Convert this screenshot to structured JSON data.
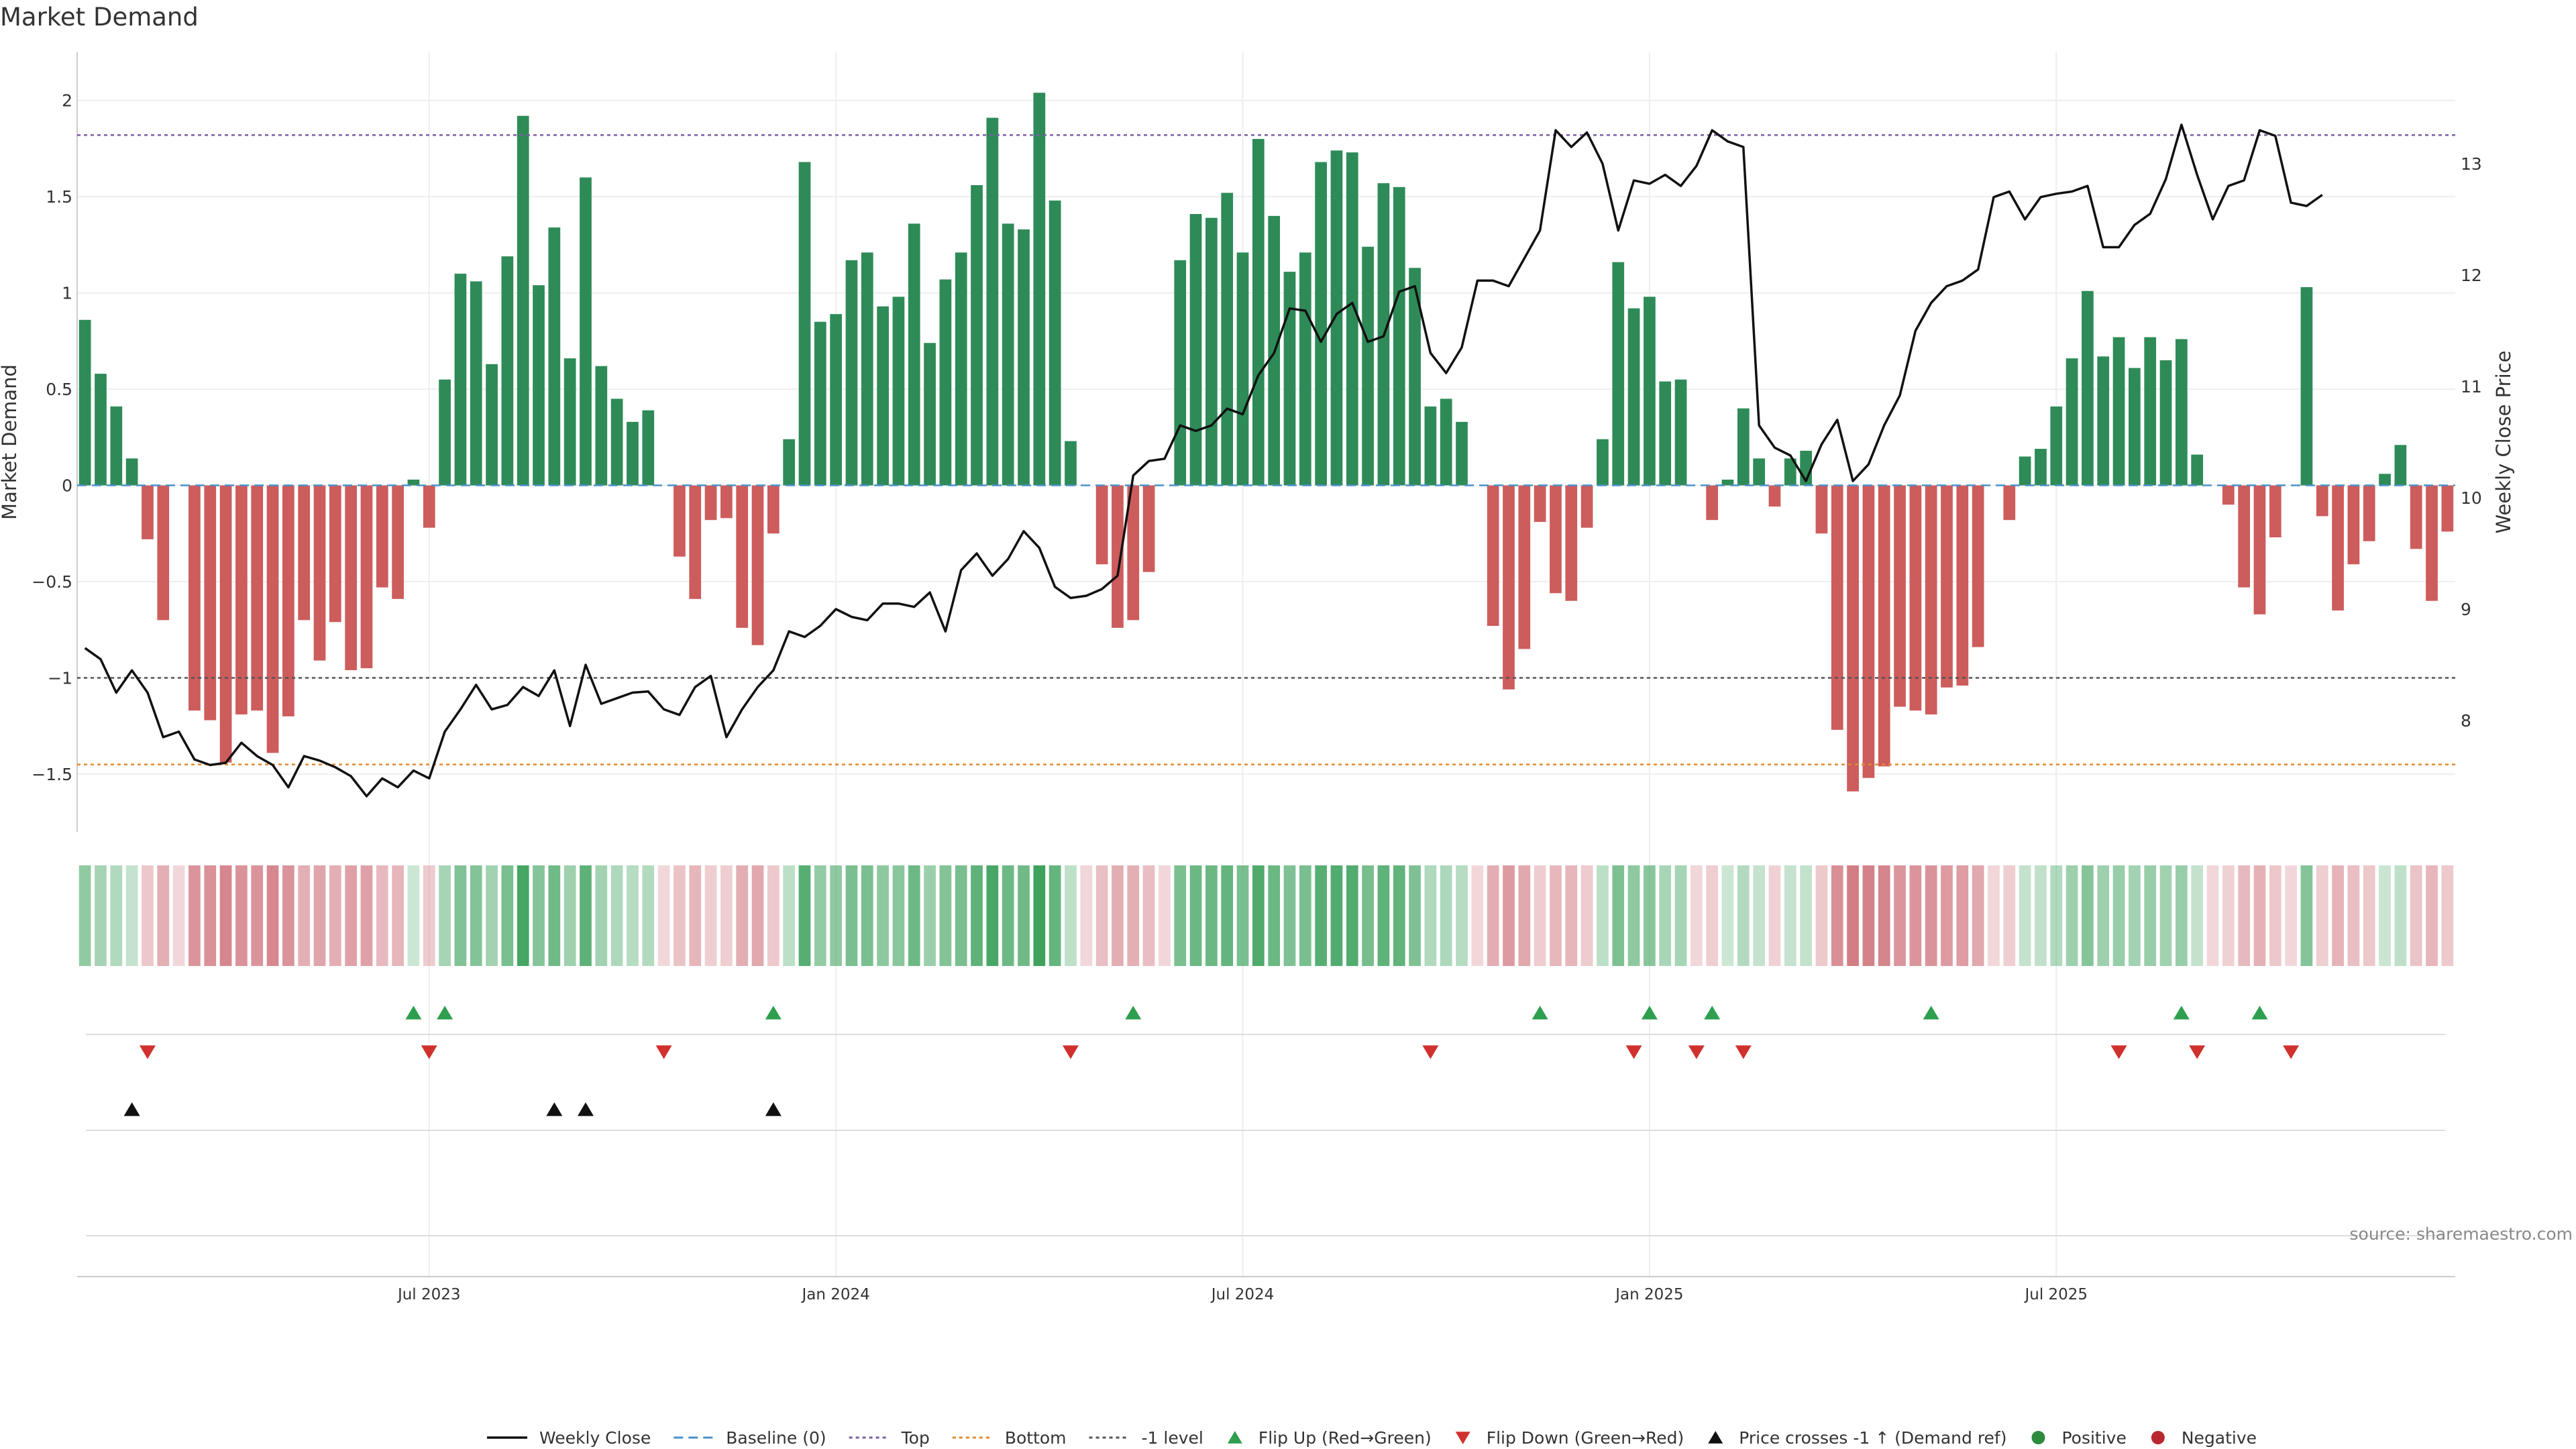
{
  "chart_data": {
    "type": "bar",
    "title": "Market Demand",
    "ylabel": "Market Demand",
    "y2label": "Weekly Close Price",
    "ylim": [
      -1.8,
      2.25
    ],
    "y2lim": [
      7.0,
      14.0
    ],
    "yticks": [
      "2",
      "1.5",
      "1",
      "0.5",
      "0",
      "−0.5",
      "−1",
      "−1.5"
    ],
    "y2ticks": [
      "13",
      "12",
      "11",
      "10",
      "9",
      "8"
    ],
    "xticks": [
      {
        "label": "Jul 2023",
        "week": 22
      },
      {
        "label": "Jan 2024",
        "week": 48
      },
      {
        "label": "Jul 2024",
        "week": 74
      },
      {
        "label": "Jan 2025",
        "week": 100
      },
      {
        "label": "Jul 2025",
        "week": 126
      }
    ],
    "reference_lines": {
      "top": 1.82,
      "bottom": -1.45,
      "minus_one": -1.0,
      "baseline": 0
    },
    "demand": [
      0.86,
      0.58,
      0.41,
      0.14,
      -0.28,
      -0.7,
      0,
      -1.17,
      -1.22,
      -1.44,
      -1.19,
      -1.17,
      -1.39,
      -1.2,
      -0.7,
      -0.91,
      -0.71,
      -0.96,
      -0.95,
      -0.53,
      -0.59,
      0.03,
      -0.22,
      0.55,
      1.1,
      1.06,
      0.63,
      1.19,
      1.92,
      1.04,
      1.34,
      0.66,
      1.6,
      0.62,
      0.45,
      0.33,
      0.39,
      0,
      -0.37,
      -0.59,
      -0.18,
      -0.17,
      -0.74,
      -0.83,
      -0.25,
      0.24,
      1.68,
      0.85,
      0.89,
      1.17,
      1.21,
      0.93,
      0.98,
      1.36,
      0.74,
      1.07,
      1.21,
      1.56,
      1.91,
      1.36,
      1.33,
      2.04,
      1.48,
      0.23,
      0,
      -0.41,
      -0.74,
      -0.7,
      -0.45,
      0,
      1.17,
      1.41,
      1.39,
      1.52,
      1.21,
      1.8,
      1.4,
      1.11,
      1.21,
      1.68,
      1.74,
      1.73,
      1.24,
      1.57,
      1.55,
      1.13,
      0.41,
      0.45,
      0.33,
      0,
      -0.73,
      -1.06,
      -0.85,
      -0.19,
      -0.56,
      -0.6,
      -0.22,
      0.24,
      1.16,
      0.92,
      0.98,
      0.54,
      0.55,
      0,
      -0.18,
      0.03,
      0.4,
      0.14,
      -0.11,
      0.14,
      0.18,
      -0.25,
      -1.27,
      -1.59,
      -1.52,
      -1.46,
      -1.15,
      -1.17,
      -1.19,
      -1.05,
      -1.04,
      -0.84,
      0,
      -0.18,
      0.15,
      0.19,
      0.41,
      0.66,
      1.01,
      0.67,
      0.77,
      0.61,
      0.77,
      0.65,
      0.76,
      0.16,
      0,
      -0.1,
      -0.53,
      -0.67,
      -0.27,
      0,
      1.03,
      -0.16,
      -0.65,
      -0.41,
      -0.29,
      0.06,
      0.21,
      -0.33,
      -0.6,
      -0.24
    ],
    "weekly_close": [
      8.65,
      8.55,
      8.25,
      8.45,
      8.25,
      7.85,
      7.9,
      7.65,
      7.6,
      7.62,
      7.8,
      7.68,
      7.6,
      7.4,
      7.68,
      7.64,
      7.58,
      7.5,
      7.32,
      7.48,
      7.4,
      7.55,
      7.48,
      7.9,
      8.1,
      8.32,
      8.1,
      8.14,
      8.3,
      8.22,
      8.45,
      7.95,
      8.5,
      8.15,
      8.2,
      8.25,
      8.26,
      8.1,
      8.05,
      8.3,
      8.4,
      7.85,
      8.1,
      8.3,
      8.45,
      8.8,
      8.75,
      8.85,
      9.0,
      8.93,
      8.9,
      9.05,
      9.05,
      9.02,
      9.15,
      8.8,
      9.35,
      9.5,
      9.3,
      9.45,
      9.7,
      9.55,
      9.2,
      9.1,
      9.12,
      9.18,
      9.3,
      10.2,
      10.33,
      10.35,
      10.65,
      10.6,
      10.65,
      10.8,
      10.75,
      11.1,
      11.3,
      11.7,
      11.68,
      11.4,
      11.65,
      11.75,
      11.4,
      11.45,
      11.85,
      11.9,
      11.3,
      11.12,
      11.35,
      11.95,
      11.95,
      11.9,
      12.15,
      12.4,
      13.3,
      13.15,
      13.28,
      13.0,
      12.4,
      12.85,
      12.82,
      12.9,
      12.8,
      12.98,
      13.3,
      13.2,
      13.15,
      10.65,
      10.45,
      10.38,
      10.15,
      10.48,
      10.7,
      10.15,
      10.3,
      10.65,
      10.92,
      11.5,
      11.75,
      11.9,
      11.95,
      12.05,
      12.7,
      12.75,
      12.5,
      12.7,
      12.73,
      12.75,
      12.8,
      12.25,
      12.25,
      12.45,
      12.55,
      12.86,
      13.35,
      12.9,
      12.5,
      12.8,
      12.85,
      13.3,
      13.25,
      12.65,
      12.62,
      12.72
    ],
    "flip_up_weeks": [
      21,
      23,
      44,
      67,
      93,
      100,
      104,
      118,
      134,
      139
    ],
    "flip_down_weeks": [
      4,
      22,
      37,
      63,
      86,
      99,
      103,
      106,
      130,
      135,
      141
    ],
    "price_cross_weeks": [
      3,
      30,
      32,
      44
    ],
    "legend": [
      {
        "label": "Weekly Close",
        "kind": "line",
        "color": "#111111"
      },
      {
        "label": "Baseline (0)",
        "kind": "dash",
        "color": "#4a90c8"
      },
      {
        "label": "Top",
        "kind": "dot",
        "color": "#7b5ea7"
      },
      {
        "label": "Bottom",
        "kind": "dot",
        "color": "#e08a2e"
      },
      {
        "label": "-1 level",
        "kind": "dot",
        "color": "#555555"
      },
      {
        "label": "Flip Up (Red→Green)",
        "kind": "tri-up",
        "color": "#2e9e4f"
      },
      {
        "label": "Flip Down (Green→Red)",
        "kind": "tri-down",
        "color": "#d0312d"
      },
      {
        "label": "Price crosses -1 ↑ (Demand ref)",
        "kind": "tri-up",
        "color": "#111111"
      },
      {
        "label": "Positive",
        "kind": "circle",
        "color": "#2e8b3e"
      },
      {
        "label": "Negative",
        "kind": "circle",
        "color": "#b8282e"
      }
    ],
    "source": "source: sharemaestro.com"
  },
  "colors": {
    "positive_bar": "#2e8b57",
    "negative_bar": "#cd5c5c",
    "heat_positive": "#3aa05a",
    "heat_negative": "#c9606a"
  }
}
